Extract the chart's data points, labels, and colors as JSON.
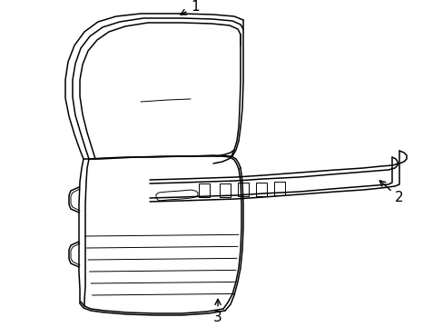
{
  "background_color": "#ffffff",
  "line_color": "#000000",
  "line_width": 1.1,
  "thin_lw": 0.7,
  "label_1": "1",
  "label_2": "2",
  "label_3": "3",
  "label_fontsize": 10,
  "arrow_color": "#000000",
  "figsize": [
    4.89,
    3.6
  ],
  "dpi": 100
}
